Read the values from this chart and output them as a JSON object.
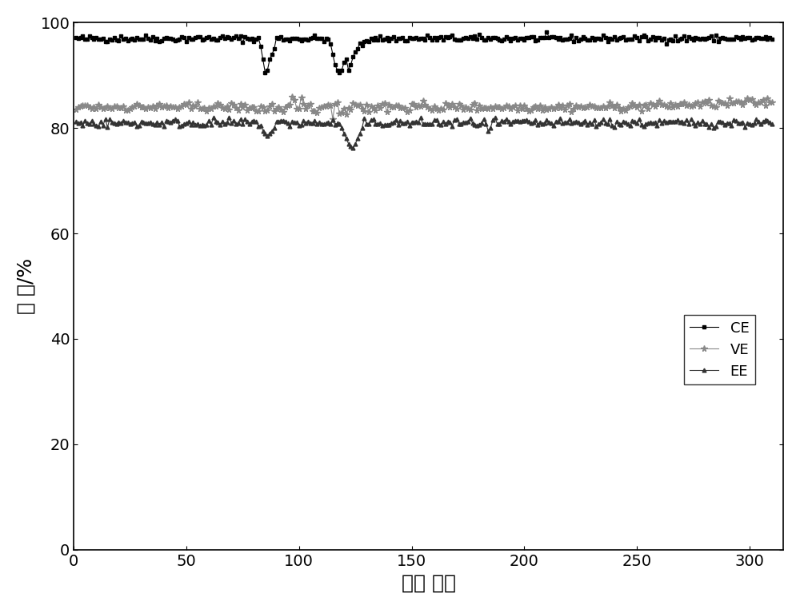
{
  "title": "",
  "xlabel": "循环 次数",
  "ylabel": "效 率/%",
  "xlim": [
    0,
    315
  ],
  "ylim": [
    0,
    100
  ],
  "xticks": [
    0,
    50,
    100,
    150,
    200,
    250,
    300
  ],
  "yticks": [
    0,
    20,
    40,
    60,
    80,
    100
  ],
  "CE_color": "#000000",
  "VE_color": "#888888",
  "EE_color": "#333333",
  "legend_labels": [
    "CE",
    "VE",
    "EE"
  ],
  "background_color": "#ffffff",
  "linewidth": 0.8,
  "markersize": 3.5
}
